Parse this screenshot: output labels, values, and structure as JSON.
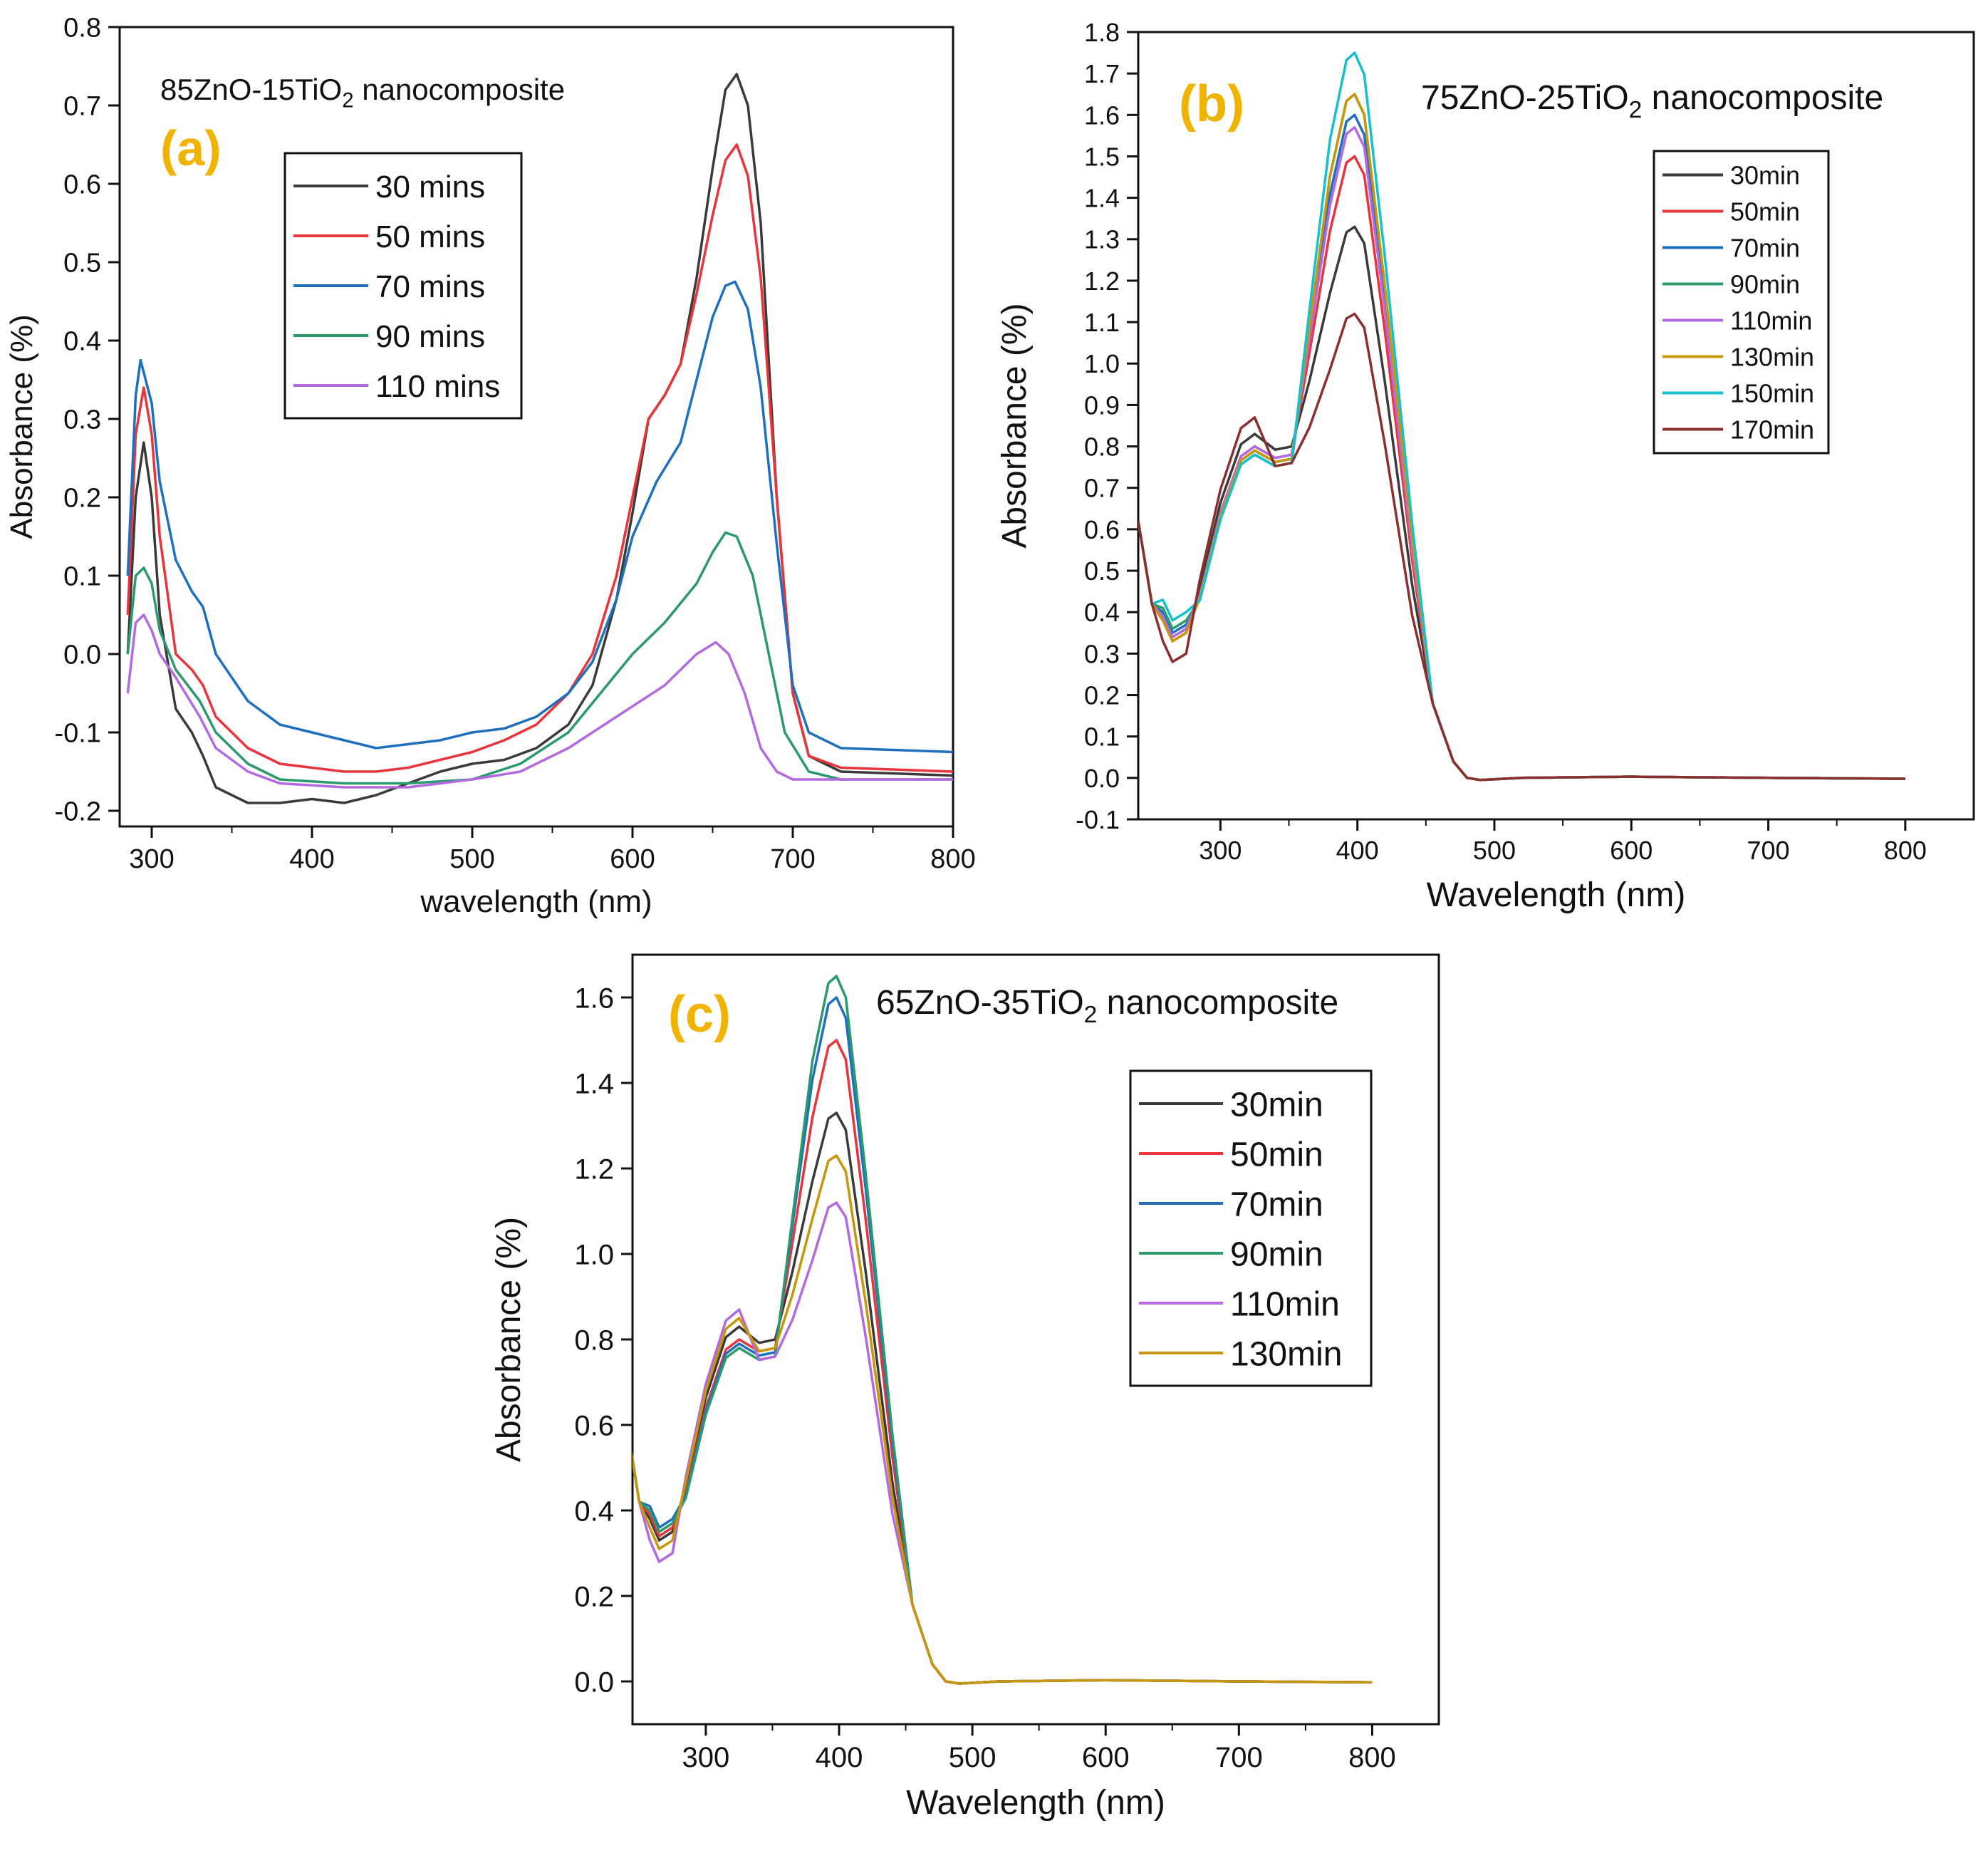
{
  "figure": {
    "background": "#ffffff",
    "panel_label_color": "#f0b400"
  },
  "chart_data": [
    {
      "type": "line",
      "panel_label": "(a)",
      "title_main": "85ZnO-15TiO",
      "title_sub": "2",
      "title_tail": " nanocomposite",
      "xlabel": "wavelength (nm)",
      "ylabel": "Absorbance (%)",
      "xlim": [
        280,
        800
      ],
      "ylim": [
        -0.22,
        0.8
      ],
      "xticks": [
        300,
        400,
        500,
        600,
        700,
        800
      ],
      "yticks": [
        -0.2,
        -0.1,
        0.0,
        0.1,
        0.2,
        0.3,
        0.4,
        0.5,
        0.6,
        0.7,
        0.8
      ],
      "ytick_labels": [
        "-0.2",
        "-0.1",
        "0.0",
        "0.1",
        "0.2",
        "0.3",
        "0.4",
        "0.5",
        "0.6",
        "0.7",
        "0.8"
      ],
      "legend_placement": "upper-middle",
      "series": [
        {
          "name": "30 mins",
          "color": "#3a3a3a",
          "points": [
            [
              285,
              0.0
            ],
            [
              290,
              0.2
            ],
            [
              295,
              0.27
            ],
            [
              300,
              0.2
            ],
            [
              305,
              0.05
            ],
            [
              315,
              -0.07
            ],
            [
              325,
              -0.1
            ],
            [
              332,
              -0.13
            ],
            [
              340,
              -0.17
            ],
            [
              350,
              -0.18
            ],
            [
              360,
              -0.19
            ],
            [
              380,
              -0.19
            ],
            [
              400,
              -0.185
            ],
            [
              420,
              -0.19
            ],
            [
              440,
              -0.18
            ],
            [
              460,
              -0.165
            ],
            [
              480,
              -0.15
            ],
            [
              500,
              -0.14
            ],
            [
              520,
              -0.135
            ],
            [
              540,
              -0.12
            ],
            [
              560,
              -0.09
            ],
            [
              575,
              -0.04
            ],
            [
              590,
              0.07
            ],
            [
              600,
              0.18
            ],
            [
              610,
              0.3
            ],
            [
              620,
              0.33
            ],
            [
              630,
              0.37
            ],
            [
              640,
              0.48
            ],
            [
              650,
              0.62
            ],
            [
              658,
              0.72
            ],
            [
              665,
              0.74
            ],
            [
              672,
              0.7
            ],
            [
              680,
              0.55
            ],
            [
              690,
              0.2
            ],
            [
              700,
              -0.05
            ],
            [
              710,
              -0.13
            ],
            [
              730,
              -0.15
            ],
            [
              800,
              -0.155
            ]
          ]
        },
        {
          "name": "50 mins",
          "color": "#e8343a",
          "points": [
            [
              285,
              0.05
            ],
            [
              290,
              0.28
            ],
            [
              295,
              0.34
            ],
            [
              300,
              0.28
            ],
            [
              305,
              0.15
            ],
            [
              315,
              0.0
            ],
            [
              325,
              -0.02
            ],
            [
              332,
              -0.04
            ],
            [
              340,
              -0.08
            ],
            [
              360,
              -0.12
            ],
            [
              380,
              -0.14
            ],
            [
              420,
              -0.15
            ],
            [
              440,
              -0.15
            ],
            [
              460,
              -0.145
            ],
            [
              480,
              -0.135
            ],
            [
              500,
              -0.125
            ],
            [
              520,
              -0.11
            ],
            [
              540,
              -0.09
            ],
            [
              560,
              -0.05
            ],
            [
              575,
              0.0
            ],
            [
              590,
              0.1
            ],
            [
              600,
              0.2
            ],
            [
              610,
              0.3
            ],
            [
              620,
              0.33
            ],
            [
              630,
              0.37
            ],
            [
              640,
              0.46
            ],
            [
              650,
              0.56
            ],
            [
              658,
              0.63
            ],
            [
              665,
              0.65
            ],
            [
              672,
              0.61
            ],
            [
              680,
              0.48
            ],
            [
              690,
              0.2
            ],
            [
              700,
              -0.05
            ],
            [
              710,
              -0.13
            ],
            [
              730,
              -0.145
            ],
            [
              800,
              -0.15
            ]
          ]
        },
        {
          "name": "70 mins",
          "color": "#1f6fbf",
          "points": [
            [
              285,
              0.1
            ],
            [
              290,
              0.33
            ],
            [
              293,
              0.375
            ],
            [
              300,
              0.32
            ],
            [
              305,
              0.22
            ],
            [
              315,
              0.12
            ],
            [
              325,
              0.08
            ],
            [
              332,
              0.06
            ],
            [
              340,
              0.0
            ],
            [
              360,
              -0.06
            ],
            [
              380,
              -0.09
            ],
            [
              400,
              -0.1
            ],
            [
              420,
              -0.11
            ],
            [
              440,
              -0.12
            ],
            [
              460,
              -0.115
            ],
            [
              480,
              -0.11
            ],
            [
              500,
              -0.1
            ],
            [
              520,
              -0.095
            ],
            [
              540,
              -0.08
            ],
            [
              560,
              -0.05
            ],
            [
              575,
              -0.01
            ],
            [
              590,
              0.07
            ],
            [
              600,
              0.15
            ],
            [
              615,
              0.22
            ],
            [
              630,
              0.27
            ],
            [
              640,
              0.35
            ],
            [
              650,
              0.43
            ],
            [
              658,
              0.47
            ],
            [
              664,
              0.475
            ],
            [
              672,
              0.44
            ],
            [
              680,
              0.34
            ],
            [
              690,
              0.14
            ],
            [
              700,
              -0.04
            ],
            [
              710,
              -0.1
            ],
            [
              730,
              -0.12
            ],
            [
              800,
              -0.125
            ]
          ]
        },
        {
          "name": "90 mins",
          "color": "#2a9a6c",
          "points": [
            [
              285,
              0.0
            ],
            [
              290,
              0.1
            ],
            [
              295,
              0.11
            ],
            [
              300,
              0.09
            ],
            [
              305,
              0.03
            ],
            [
              315,
              -0.02
            ],
            [
              330,
              -0.06
            ],
            [
              340,
              -0.1
            ],
            [
              360,
              -0.14
            ],
            [
              380,
              -0.16
            ],
            [
              420,
              -0.165
            ],
            [
              460,
              -0.165
            ],
            [
              500,
              -0.16
            ],
            [
              530,
              -0.14
            ],
            [
              560,
              -0.1
            ],
            [
              580,
              -0.05
            ],
            [
              600,
              0.0
            ],
            [
              620,
              0.04
            ],
            [
              640,
              0.09
            ],
            [
              650,
              0.13
            ],
            [
              658,
              0.155
            ],
            [
              665,
              0.15
            ],
            [
              675,
              0.1
            ],
            [
              685,
              0.0
            ],
            [
              695,
              -0.1
            ],
            [
              710,
              -0.15
            ],
            [
              730,
              -0.16
            ],
            [
              800,
              -0.16
            ]
          ]
        },
        {
          "name": "110 mins",
          "color": "#b36ae0",
          "points": [
            [
              285,
              -0.05
            ],
            [
              290,
              0.04
            ],
            [
              295,
              0.05
            ],
            [
              300,
              0.03
            ],
            [
              305,
              0.0
            ],
            [
              315,
              -0.03
            ],
            [
              330,
              -0.08
            ],
            [
              340,
              -0.12
            ],
            [
              360,
              -0.15
            ],
            [
              380,
              -0.165
            ],
            [
              420,
              -0.17
            ],
            [
              460,
              -0.17
            ],
            [
              500,
              -0.16
            ],
            [
              530,
              -0.15
            ],
            [
              560,
              -0.12
            ],
            [
              590,
              -0.08
            ],
            [
              620,
              -0.04
            ],
            [
              640,
              0.0
            ],
            [
              652,
              0.015
            ],
            [
              660,
              0.0
            ],
            [
              670,
              -0.05
            ],
            [
              680,
              -0.12
            ],
            [
              690,
              -0.15
            ],
            [
              700,
              -0.16
            ],
            [
              800,
              -0.16
            ]
          ]
        }
      ]
    },
    {
      "type": "line",
      "panel_label": "(b)",
      "title_main": "75ZnO-25TiO",
      "title_sub": "2",
      "title_tail": " nanocomposite",
      "xlabel": "Wavelength (nm)",
      "ylabel": "Absorbance (%)",
      "xlim": [
        240,
        850
      ],
      "ylim": [
        -0.1,
        1.8
      ],
      "xticks": [
        300,
        400,
        500,
        600,
        700,
        800
      ],
      "yticks": [
        -0.1,
        0.0,
        0.1,
        0.2,
        0.3,
        0.4,
        0.5,
        0.6,
        0.7,
        0.8,
        0.9,
        1.0,
        1.1,
        1.2,
        1.3,
        1.4,
        1.5,
        1.6,
        1.7,
        1.8
      ],
      "ytick_labels": [
        "-0.1",
        "0.0",
        "0.1",
        "0.2",
        "0.3",
        "0.4",
        "0.5",
        "0.6",
        "0.7",
        "0.8",
        "0.9",
        "1.0",
        "1.1",
        "1.2",
        "1.3",
        "1.4",
        "1.5",
        "1.6",
        "1.7",
        "1.8"
      ],
      "legend_placement": "upper-right",
      "series": [
        {
          "name": "30min",
          "color": "#3a3a3a",
          "peak": 1.33,
          "shoulder": 0.83,
          "dip": 0.8,
          "low": 0.33
        },
        {
          "name": "50min",
          "color": "#e8343a",
          "peak": 1.5,
          "shoulder": 0.8,
          "dip": 0.78,
          "low": 0.34
        },
        {
          "name": "70min",
          "color": "#1f6fbf",
          "peak": 1.6,
          "shoulder": 0.79,
          "dip": 0.77,
          "low": 0.35
        },
        {
          "name": "90min",
          "color": "#2a9a6c",
          "peak": 1.65,
          "shoulder": 0.78,
          "dip": 0.76,
          "low": 0.36
        },
        {
          "name": "110min",
          "color": "#b36ae0",
          "peak": 1.57,
          "shoulder": 0.8,
          "dip": 0.78,
          "low": 0.34
        },
        {
          "name": "130min",
          "color": "#c8960a",
          "peak": 1.65,
          "shoulder": 0.79,
          "dip": 0.77,
          "low": 0.33
        },
        {
          "name": "150min",
          "color": "#16c0cc",
          "peak": 1.75,
          "shoulder": 0.78,
          "dip": 0.76,
          "low": 0.38
        },
        {
          "name": "170min",
          "color": "#8b2e2e",
          "peak": 1.12,
          "shoulder": 0.87,
          "dip": 0.76,
          "low": 0.28
        }
      ]
    },
    {
      "type": "line",
      "panel_label": "(c)",
      "title_main": "65ZnO-35TiO",
      "title_sub": "2",
      "title_tail": " nanocomposite",
      "xlabel": "Wavelength (nm)",
      "ylabel": "Absorbance (%)",
      "xlim": [
        245,
        850
      ],
      "ylim": [
        -0.1,
        1.7
      ],
      "xticks": [
        300,
        400,
        500,
        600,
        700,
        800
      ],
      "yticks": [
        0.0,
        0.2,
        0.4,
        0.6,
        0.8,
        1.0,
        1.2,
        1.4,
        1.6
      ],
      "ytick_labels": [
        "0.0",
        "0.2",
        "0.4",
        "0.6",
        "0.8",
        "1.0",
        "1.2",
        "1.4",
        "1.6"
      ],
      "legend_placement": "upper-right",
      "series": [
        {
          "name": "30min",
          "color": "#3a3a3a",
          "peak": 1.33,
          "shoulder": 0.83,
          "dip": 0.8,
          "low": 0.33
        },
        {
          "name": "50min",
          "color": "#e8343a",
          "peak": 1.5,
          "shoulder": 0.8,
          "dip": 0.78,
          "low": 0.34
        },
        {
          "name": "70min",
          "color": "#1f6fbf",
          "peak": 1.6,
          "shoulder": 0.79,
          "dip": 0.77,
          "low": 0.36
        },
        {
          "name": "90min",
          "color": "#2a9a6c",
          "peak": 1.65,
          "shoulder": 0.78,
          "dip": 0.76,
          "low": 0.35
        },
        {
          "name": "110min",
          "color": "#b36ae0",
          "peak": 1.12,
          "shoulder": 0.87,
          "dip": 0.76,
          "low": 0.28
        },
        {
          "name": "130min",
          "color": "#c8960a",
          "peak": 1.23,
          "shoulder": 0.85,
          "dip": 0.78,
          "low": 0.31
        }
      ]
    }
  ]
}
